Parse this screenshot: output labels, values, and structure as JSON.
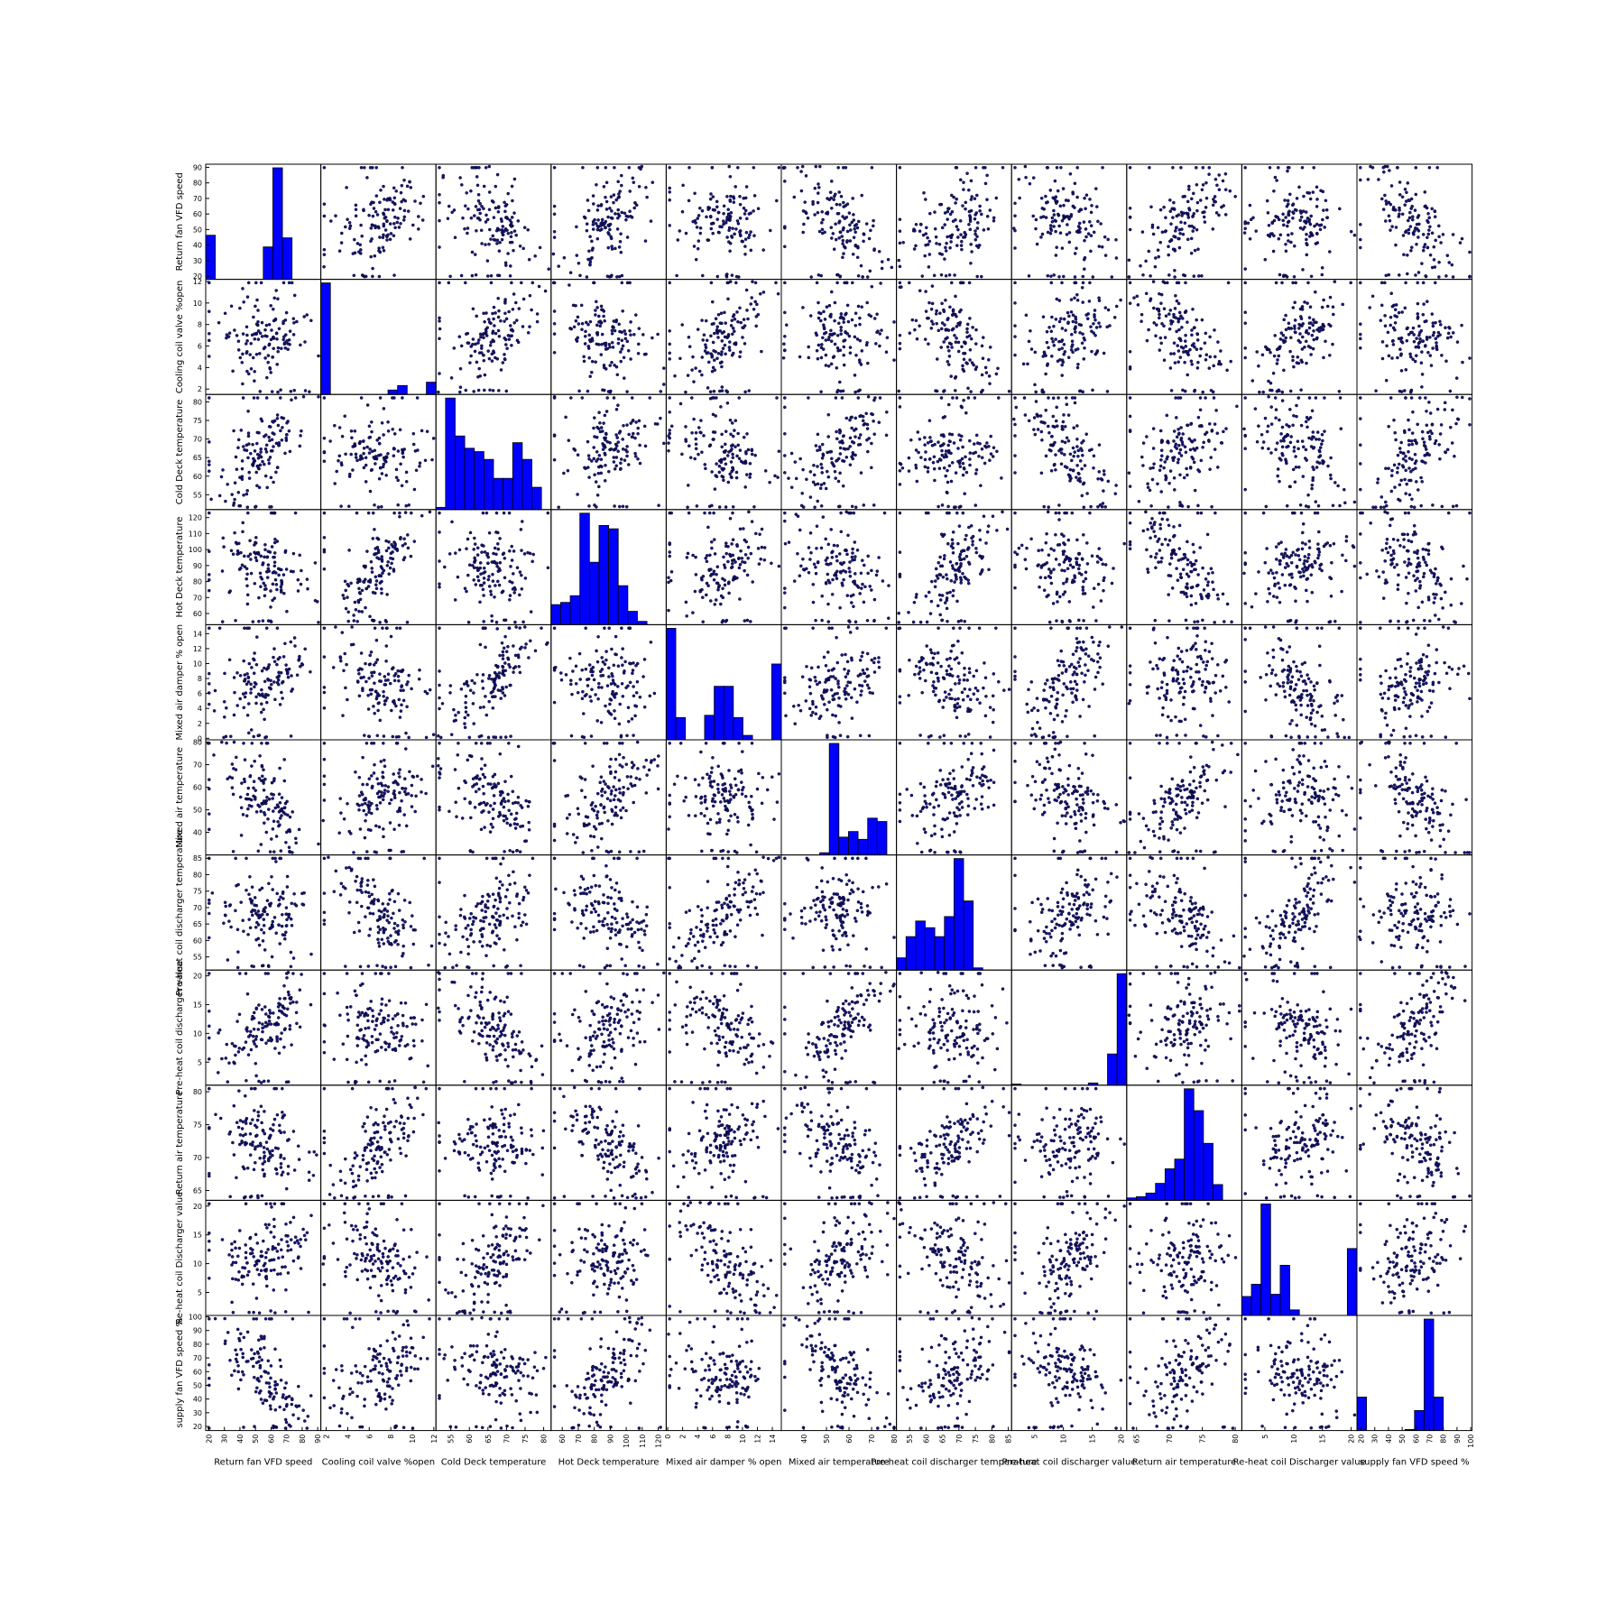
{
  "chart_data": {
    "type": "scatter-matrix",
    "variables": [
      "Return fan VFD speed",
      "Cooling coil valve %open",
      "Cold Deck temperature",
      "Hot Deck temperature",
      "Mixed air damper % open",
      "Mixed air temperature",
      "Pre-heat coil discharger temperature",
      "Pre-heat coil discharger value",
      "Return air temperature",
      "Re-heat coil Discharger value",
      "supply fan VFD speed %"
    ],
    "ranges": [
      [
        18,
        92
      ],
      [
        1.5,
        12.2
      ],
      [
        51,
        82
      ],
      [
        53,
        125
      ],
      [
        -0.2,
        15.2
      ],
      [
        30,
        81
      ],
      [
        51,
        86
      ],
      [
        1,
        21
      ],
      [
        63.5,
        81
      ],
      [
        1,
        21
      ],
      [
        17,
        101
      ]
    ],
    "ticks": [
      [
        20,
        30,
        40,
        50,
        60,
        70,
        80,
        90
      ],
      [
        2,
        4,
        6,
        8,
        10,
        12
      ],
      [
        55,
        60,
        65,
        70,
        75,
        80
      ],
      [
        60,
        70,
        80,
        90,
        100,
        110,
        120
      ],
      [
        0,
        2,
        4,
        6,
        8,
        10,
        12,
        14
      ],
      [
        40,
        50,
        60,
        70,
        80
      ],
      [
        55,
        60,
        65,
        70,
        75,
        80,
        85
      ],
      [
        5,
        10,
        15,
        20
      ],
      [
        65,
        70,
        75,
        80
      ],
      [
        5,
        10,
        15,
        20
      ],
      [
        20,
        30,
        40,
        50,
        60,
        70,
        80,
        90,
        100
      ]
    ],
    "histograms": [
      [
        34,
        0,
        0,
        0,
        0,
        0,
        25,
        86,
        32,
        0,
        0,
        0
      ],
      [
        100,
        0,
        0,
        0,
        0,
        0,
        0,
        4,
        8,
        0,
        0,
        11
      ],
      [
        2,
        100,
        66,
        55,
        52,
        45,
        28,
        28,
        60,
        45,
        20,
        0
      ],
      [
        18,
        20,
        26,
        100,
        56,
        89,
        86,
        35,
        12,
        3,
        0,
        0
      ],
      [
        100,
        20,
        0,
        0,
        22,
        48,
        48,
        20,
        4,
        0,
        0,
        68
      ],
      [
        0,
        0,
        0,
        0,
        2,
        100,
        16,
        21,
        14,
        33,
        30,
        0
      ],
      [
        11,
        30,
        44,
        38,
        30,
        48,
        100,
        62,
        2,
        0,
        0,
        0
      ],
      [
        1,
        0,
        0,
        0,
        0,
        0,
        0,
        0,
        2,
        0,
        28,
        100
      ],
      [
        2,
        3,
        6,
        14,
        26,
        34,
        92,
        74,
        47,
        13,
        0,
        0
      ],
      [
        17,
        28,
        100,
        19,
        45,
        5,
        0,
        0,
        0,
        0,
        0,
        60
      ],
      [
        30,
        0,
        0,
        0,
        0,
        1,
        18,
        100,
        30,
        0,
        0,
        0
      ]
    ],
    "point_color": "#1a1a6e",
    "point_edge": "#000033",
    "bar_color": "#0000ff",
    "bar_edge": "#000000",
    "grid": false,
    "legend": "none"
  }
}
